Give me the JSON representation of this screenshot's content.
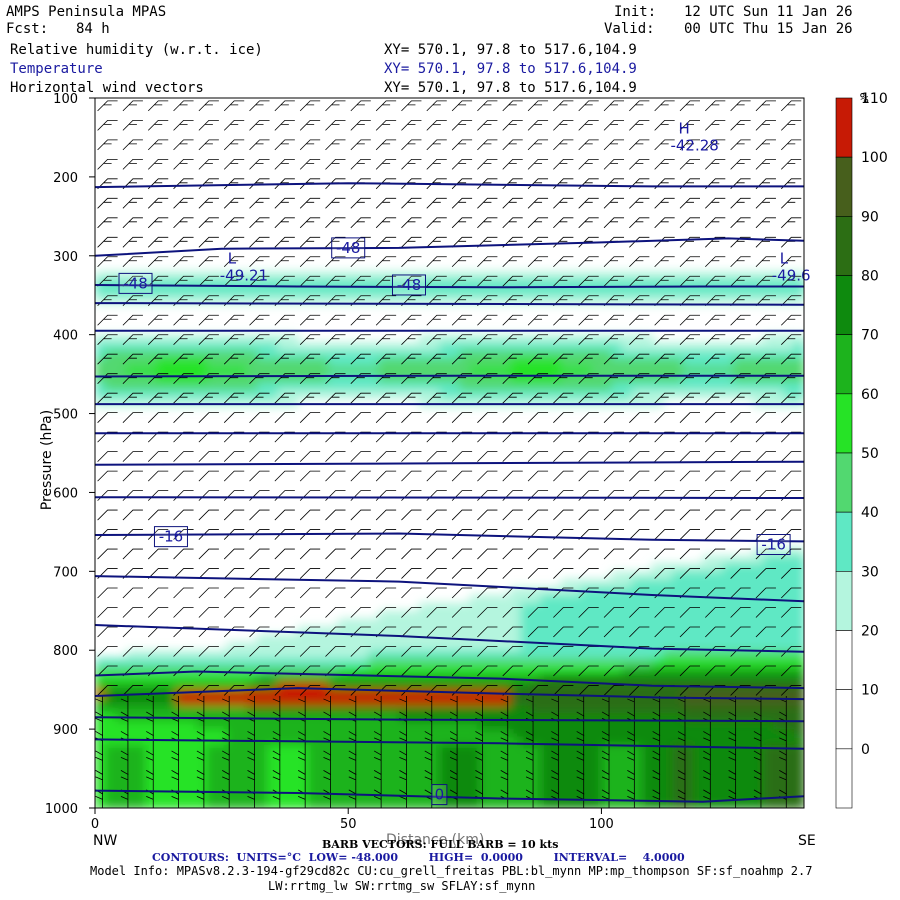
{
  "header": {
    "model": "AMPS Peninsula MPAS",
    "fcst_label": "Fcst:",
    "fcst_value": "84 h",
    "init_label": "Init:",
    "init_value": "12 UTC Sun 11 Jan 26",
    "valid_label": "Valid:",
    "valid_value": "00 UTC Thu 15 Jan 26",
    "fields": [
      {
        "name": "Relative humidity (w.r.t. ice)",
        "xy": "XY= 570.1, 97.8 to 517.6,104.9",
        "color": "#000000"
      },
      {
        "name": "Temperature",
        "xy": "XY= 570.1, 97.8 to 517.6,104.9",
        "color": "#1a1aa0"
      },
      {
        "name": "Horizontal wind vectors",
        "xy": "XY= 570.1, 97.8 to 517.6,104.9",
        "color": "#000000"
      }
    ]
  },
  "colors": {
    "rh_levels": [
      "#ffffff",
      "#ffffff",
      "#ffffff",
      "#ffffff",
      "#b4f5de",
      "#5fe8c4",
      "#52d870",
      "#26e326",
      "#1db31d",
      "#0e8a0e",
      "#2c6e14",
      "#475f1c",
      "#c71a05"
    ],
    "contour": "#0d137d",
    "barb": "#000000"
  },
  "chart_data": {
    "type": "cross-section",
    "xlabel": "Distance (km)",
    "ylabel": "Pressure (hPa)",
    "xlim": [
      0,
      140
    ],
    "ylim": [
      1000,
      100
    ],
    "x_ticks": [
      "0",
      "50",
      "100"
    ],
    "y_ticks": [
      "100",
      "200",
      "300",
      "400",
      "500",
      "600",
      "700",
      "800",
      "900",
      "1000"
    ],
    "left_endpoint": "NW",
    "right_endpoint": "SE",
    "colorbar": {
      "unit": "%",
      "labels": [
        "0",
        "10",
        "20",
        "30",
        "40",
        "50",
        "60",
        "70",
        "80",
        "90",
        "100",
        "110"
      ]
    },
    "temperature_contours": {
      "units": "°C",
      "low": -48.0,
      "high": 0.0,
      "interval": 4.0,
      "labels": [
        {
          "text": "-48",
          "x": 8,
          "p": 335
        },
        {
          "text": "-48",
          "x": 50,
          "p": 290
        },
        {
          "text": "-48",
          "x": 62,
          "p": 337
        },
        {
          "text": "-16",
          "x": 15,
          "p": 656
        },
        {
          "text": "-16",
          "x": 134,
          "p": 666
        },
        {
          "text": "0",
          "x": 68,
          "p": 983
        }
      ]
    },
    "extrema": [
      {
        "type": "H",
        "value": "-42.28",
        "x": 116,
        "p": 160
      },
      {
        "type": "L",
        "value": "-49.21",
        "x": 27,
        "p": 325
      },
      {
        "type": "L",
        "value": "-49.6",
        "x": 136,
        "p": 325
      }
    ],
    "barb_note": "BARB VECTORS: FULL BARB = 10 kts"
  },
  "footer": {
    "barb_text": "BARB VECTORS: FULL BARB = 10 kts",
    "contours_text": "CONTOURS:  UNITS=°C  LOW= -48.000        HIGH=  0.0000        INTERVAL=    4.0000",
    "model_info_1": "Model Info: MPASv8.2.3-194-gf29cd82c CU:cu_grell_freitas PBL:bl_mynn MP:mp_thompson SF:sf_noahmp 2.7",
    "model_info_2": "LW:rrtmg_lw SW:rrtmg_sw SFLAY:sf_mynn"
  }
}
